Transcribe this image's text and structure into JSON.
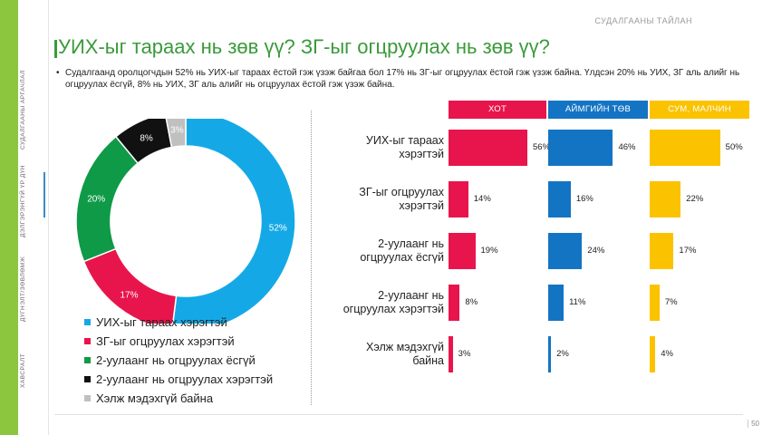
{
  "header": {
    "report_tag": "СУДАЛГААНЫ ТАЙЛАН"
  },
  "title": "УИХ-ыг тараах нь зөв үү? ЗГ-ыг огцруулах нь зөв үү?",
  "bullet": "Судалгаанд оролцогчдын 52% нь УИХ-ыг тараах ёстой гэж үзэж байгаа бол 17% нь ЗГ-ыг огцруулах ёстой гэж үзэж байна. Үлдсэн 20% нь УИХ, ЗГ аль алийг нь огцруулах ёсгүй, 8% нь УИХ, ЗГ аль алийг нь огцруулах ёстой гэж үзэж байна.",
  "sidebar": {
    "items": [
      "ХАВСРАЛТ",
      "ДҮГНЭЛТ/ЗӨВЛӨМЖ",
      "ДЭЛГЭРЭНГҮЙ ҮР ДҮН",
      "СУДАЛГААНЫ АРГАЧЛАЛ"
    ]
  },
  "page_number": "50",
  "colors": {
    "blue": "#14a9e6",
    "red": "#e8154c",
    "green": "#0f9a48",
    "black": "#111111",
    "gray": "#c0c0c0",
    "hot": "#e8154c",
    "aimag": "#1474c4",
    "sum": "#fbc200"
  },
  "chart_data": [
    {
      "type": "pie",
      "donut": true,
      "categories": [
        "УИХ-ыг тараах хэрэгтэй",
        "ЗГ-ыг огцруулах хэрэгтэй",
        "2-уулаанг нь огцруулах ёсгүй",
        "2-уулаанг нь огцруулах хэрэгтэй",
        "Хэлж мэдэхгүй байна"
      ],
      "values": [
        52,
        17,
        20,
        8,
        3
      ],
      "value_labels": [
        "52%",
        "17%",
        "20%",
        "8%",
        "3%"
      ],
      "legend_position": "bottom-left"
    },
    {
      "type": "bar",
      "orientation": "horizontal",
      "categories": [
        "УИХ-ыг тараах хэрэгтэй",
        "ЗГ-ыг огцруулах хэрэгтэй",
        "2-уулаанг нь огцруулах ёсгүй",
        "2-уулаанг нь огцруулах хэрэгтэй",
        "Хэлж мэдэхгүй байна"
      ],
      "series": [
        {
          "name": "ХОТ",
          "values": [
            56,
            14,
            19,
            8,
            3
          ],
          "value_labels": [
            "56%",
            "14%",
            "19%",
            "8%",
            "3%"
          ]
        },
        {
          "name": "АЙМГИЙН ТӨВ",
          "values": [
            46,
            16,
            24,
            11,
            2
          ],
          "value_labels": [
            "46%",
            "16%",
            "24%",
            "11%",
            "2%"
          ]
        },
        {
          "name": "СУМ, МАЛЧИН",
          "values": [
            50,
            22,
            17,
            7,
            4
          ],
          "value_labels": [
            "50%",
            "22%",
            "17%",
            "7%",
            "4%"
          ]
        }
      ],
      "row_labels": [
        [
          "УИХ-ыг тараах",
          "хэрэгтэй"
        ],
        [
          "ЗГ-ыг огцруулах",
          "хэрэгтэй"
        ],
        [
          "2-уулаанг нь",
          "огцруулах ёсгүй"
        ],
        [
          "2-уулаанг нь",
          "огцруулах хэрэгтэй"
        ],
        [
          "Хэлж мэдэхгүй",
          "байна"
        ]
      ]
    }
  ]
}
